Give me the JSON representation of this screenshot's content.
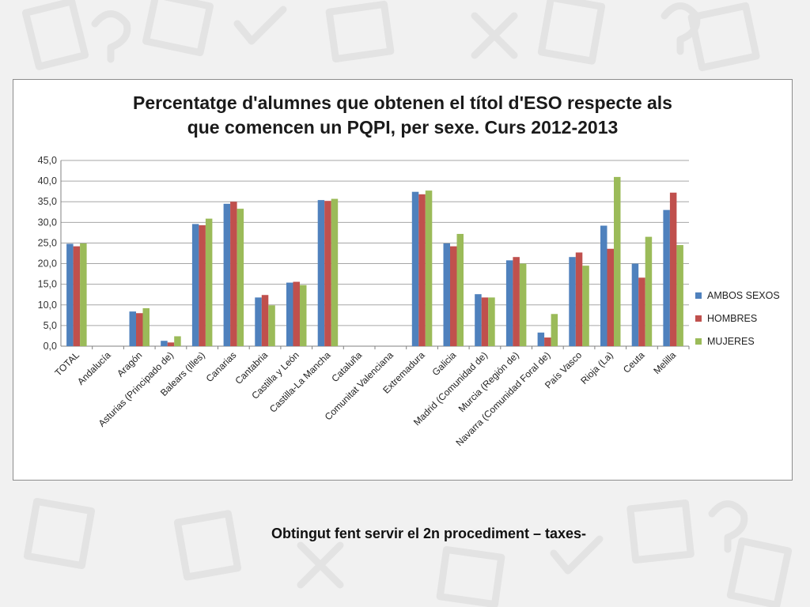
{
  "colors": {
    "background": "#f1f1f1",
    "series": [
      "#4f81bd",
      "#c0504d",
      "#9bbb59"
    ]
  },
  "footnote": "Obtingut fent servir el 2n procediment – taxes-",
  "chart_data": {
    "type": "bar",
    "title_lines": [
      "Percentatge d'alumnes que obtenen el títol d'ESO respecte als",
      "que comencen un PQPI, per sexe.  Curs 2012-2013"
    ],
    "xlabel": "",
    "ylabel": "",
    "ylim": [
      0,
      45
    ],
    "yticks": [
      "0,0",
      "5,0",
      "10,0",
      "15,0",
      "20,0",
      "25,0",
      "30,0",
      "35,0",
      "40,0",
      "45,0"
    ],
    "grid": true,
    "legend_position": "right",
    "categories": [
      "TOTAL",
      "Andalucía",
      "Aragón",
      "Asturias (Principado de)",
      "Balears (Illes)",
      "Canarias",
      "Cantabria",
      "Castilla y León",
      "Castilla-La Mancha",
      "Cataluña",
      "Comunitat Valenciana",
      "Extremadura",
      "Galicia",
      "Madrid (Comunidad de)",
      "Murcia (Región de)",
      "Navarra (Comunidad Foral de)",
      "País Vasco",
      "Rioja (La)",
      "Ceuta",
      "Melilla"
    ],
    "series": [
      {
        "name": "AMBOS SEXOS",
        "values": [
          24.8,
          null,
          8.4,
          1.3,
          29.6,
          34.5,
          11.8,
          15.4,
          35.4,
          null,
          null,
          37.4,
          24.9,
          12.6,
          20.8,
          3.3,
          21.6,
          29.2,
          20.0,
          33.0
        ]
      },
      {
        "name": "HOMBRES",
        "values": [
          24.2,
          null,
          8.0,
          0.9,
          29.3,
          35.0,
          12.4,
          15.6,
          35.2,
          null,
          null,
          36.8,
          24.2,
          11.8,
          21.6,
          2.1,
          22.7,
          23.6,
          16.6,
          37.2
        ]
      },
      {
        "name": "MUJERES",
        "values": [
          24.9,
          null,
          9.2,
          2.4,
          30.9,
          33.3,
          9.9,
          14.8,
          35.7,
          null,
          null,
          37.7,
          27.2,
          11.8,
          20.0,
          7.8,
          19.5,
          41.0,
          26.5,
          24.5
        ]
      }
    ]
  }
}
